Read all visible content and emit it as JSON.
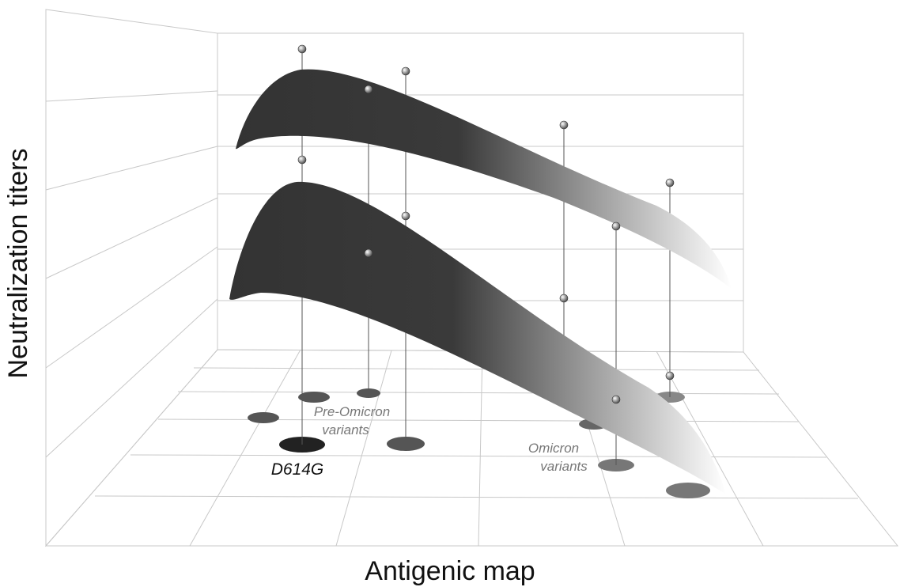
{
  "axes": {
    "y_label": "Neutralization titers",
    "x_label": "Antigenic map"
  },
  "labels": {
    "pre_omicron": [
      "Pre-Omicron",
      "variants"
    ],
    "reference": "D614G",
    "omicron": [
      "Omicron",
      "variants"
    ]
  }
}
